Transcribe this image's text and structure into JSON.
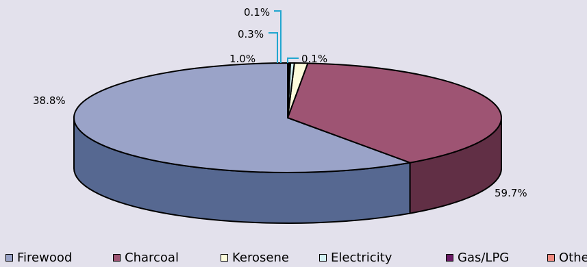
{
  "chart_data": {
    "type": "pie",
    "title": "",
    "style": "3d-exploded-none",
    "legend_position": "bottom",
    "categories": [
      "Firewood",
      "Charcoal",
      "Kerosene",
      "Electricity",
      "Gas/LPG",
      "Others"
    ],
    "values": [
      59.7,
      38.8,
      1.0,
      0.3,
      0.1,
      0.1
    ],
    "data_labels": [
      "59.7%",
      "38.8%",
      "1.0%",
      "0.3%",
      "0.1%",
      "0.1%"
    ],
    "colors": [
      "#9aa3c8",
      "#9e5473",
      "#fcfbdc",
      "#d2f1f3",
      "#6b1a66",
      "#f18a80"
    ],
    "side_colors": [
      "#566891",
      "#612f45",
      "#b9b79a",
      "#93a9ab",
      "#3f0f3c",
      "#a9615a"
    ],
    "leader_color": "#21a6cf",
    "outline_color": "#000000"
  }
}
